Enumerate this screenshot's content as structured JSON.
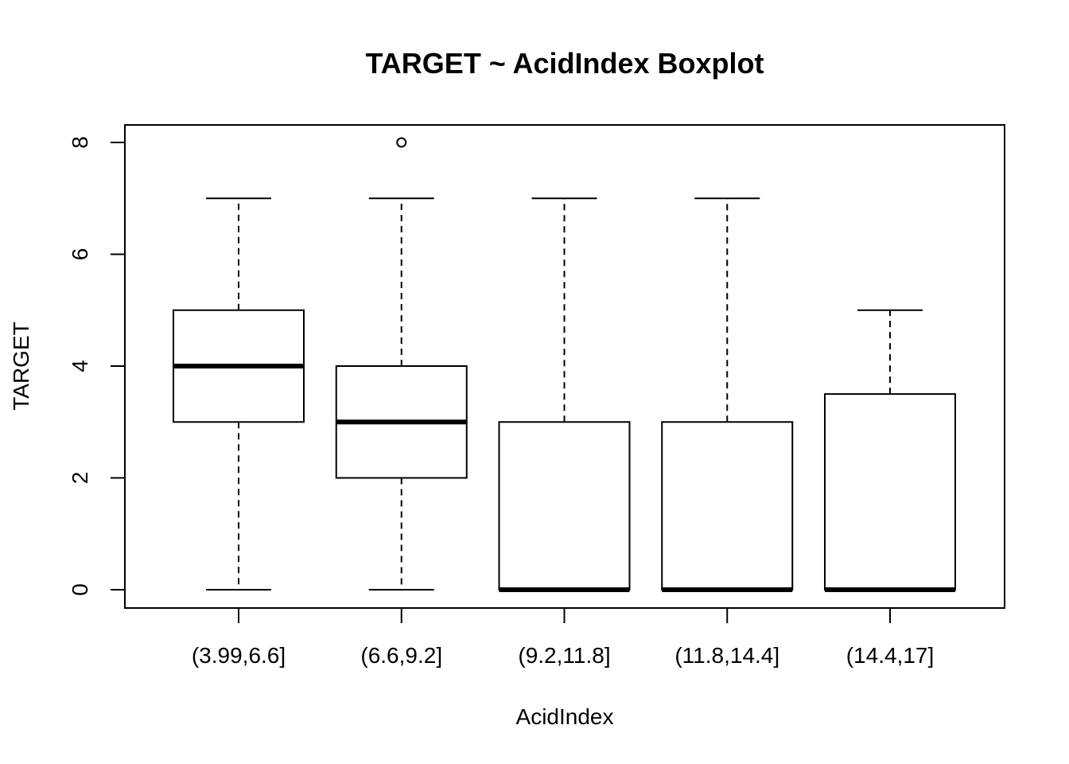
{
  "chart_data": {
    "type": "boxplot",
    "title": "TARGET ~ AcidIndex Boxplot",
    "xlabel": "AcidIndex",
    "ylabel": "TARGET",
    "ylim": [
      0,
      8
    ],
    "y_ticks": [
      "0",
      "2",
      "4",
      "6",
      "8"
    ],
    "y_tick_values": [
      0,
      2,
      4,
      6,
      8
    ],
    "categories": [
      "(3.99,6.6]",
      "(6.6,9.2]",
      "(9.2,11.8]",
      "(11.8,14.4]",
      "(14.4,17]"
    ],
    "boxes": [
      {
        "category": "(3.99,6.6]",
        "whisker_low": 0,
        "q1": 3,
        "median": 4,
        "q3": 5,
        "whisker_high": 7,
        "outliers": []
      },
      {
        "category": "(6.6,9.2]",
        "whisker_low": 0,
        "q1": 2,
        "median": 3,
        "q3": 4,
        "whisker_high": 7,
        "outliers": [
          8
        ]
      },
      {
        "category": "(9.2,11.8]",
        "whisker_low": 0,
        "q1": 0,
        "median": 0,
        "q3": 3,
        "whisker_high": 7,
        "outliers": []
      },
      {
        "category": "(11.8,14.4]",
        "whisker_low": 0,
        "q1": 0,
        "median": 0,
        "q3": 3,
        "whisker_high": 7,
        "outliers": []
      },
      {
        "category": "(14.4,17]",
        "whisker_low": 0,
        "q1": 0,
        "median": 0,
        "q3": 3.5,
        "whisker_high": 5,
        "outliers": []
      }
    ],
    "grid": false,
    "legend": "none"
  }
}
